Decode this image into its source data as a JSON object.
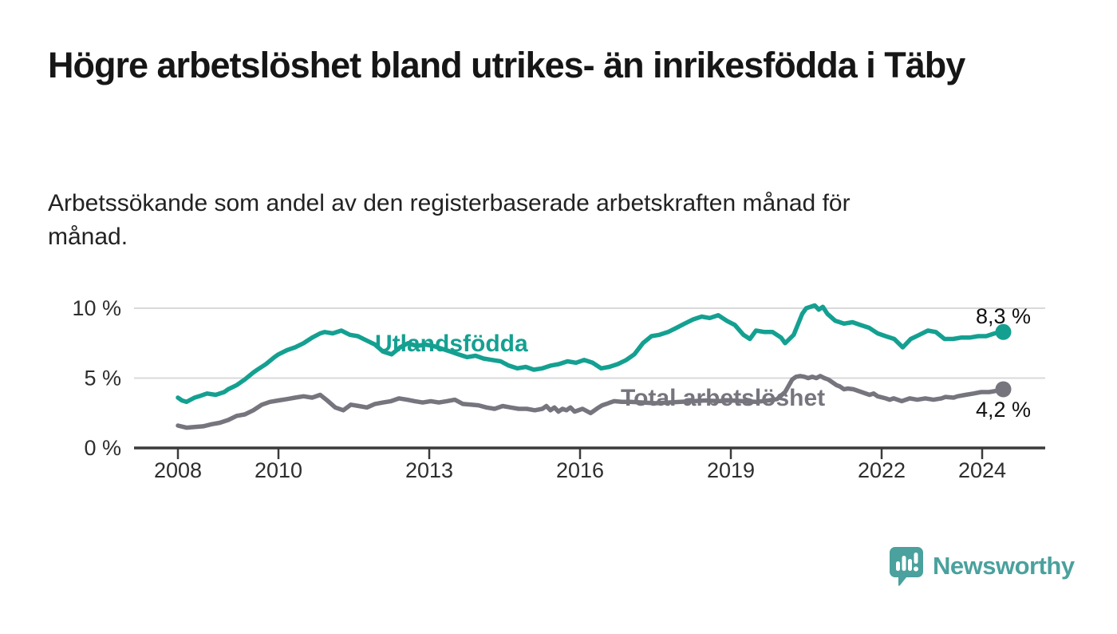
{
  "header": {
    "title": "Högre arbetslöshet bland utrikes- än inrikesfödda i Täby",
    "subtitle": "Arbetssökande som andel av den registerbaserade arbetskraften månad för månad."
  },
  "colors": {
    "series_foreign_born": "#14a091",
    "series_total": "#76757e",
    "gridline": "#d9d9d9",
    "axis": "#3b3b3b",
    "tick_text": "#2e2e2e",
    "logo_teal": "#4aa19d"
  },
  "chart_data": {
    "type": "line",
    "title": "Högre arbetslöshet bland utrikes- än inrikesfödda i Täby",
    "subtitle": "Arbetssökande som andel av den registerbaserade arbetskraften månad för månad.",
    "x_axis": {
      "ticks": [
        2008,
        2010,
        2013,
        2016,
        2019,
        2022,
        2024
      ],
      "range": [
        2007.1,
        2025.3
      ],
      "unit": "year"
    },
    "y_axis": {
      "ticks": [
        {
          "value": 0,
          "label": "0 %"
        },
        {
          "value": 5,
          "label": "5 %"
        },
        {
          "value": 10,
          "label": "10 %"
        }
      ],
      "range": [
        0,
        10.8
      ],
      "grid": true
    },
    "legend_position": "inline-labels",
    "series": [
      {
        "name": "Utlandsfödda",
        "color": "#14a091",
        "end_value": 8.3,
        "end_label": "8,3 %",
        "points": [
          [
            2008.0,
            3.6
          ],
          [
            2008.08,
            3.4
          ],
          [
            2008.17,
            3.3
          ],
          [
            2008.33,
            3.6
          ],
          [
            2008.42,
            3.7
          ],
          [
            2008.58,
            3.9
          ],
          [
            2008.75,
            3.8
          ],
          [
            2008.92,
            4.0
          ],
          [
            2009.0,
            4.2
          ],
          [
            2009.17,
            4.5
          ],
          [
            2009.33,
            4.9
          ],
          [
            2009.5,
            5.4
          ],
          [
            2009.58,
            5.6
          ],
          [
            2009.75,
            6.0
          ],
          [
            2009.92,
            6.5
          ],
          [
            2010.0,
            6.7
          ],
          [
            2010.17,
            7.0
          ],
          [
            2010.33,
            7.2
          ],
          [
            2010.5,
            7.5
          ],
          [
            2010.67,
            7.9
          ],
          [
            2010.83,
            8.2
          ],
          [
            2010.92,
            8.3
          ],
          [
            2011.08,
            8.2
          ],
          [
            2011.25,
            8.4
          ],
          [
            2011.42,
            8.1
          ],
          [
            2011.58,
            8.0
          ],
          [
            2011.75,
            7.7
          ],
          [
            2011.92,
            7.4
          ],
          [
            2012.08,
            6.9
          ],
          [
            2012.25,
            6.7
          ],
          [
            2012.42,
            7.2
          ],
          [
            2012.58,
            7.5
          ],
          [
            2012.75,
            7.3
          ],
          [
            2012.92,
            7.4
          ],
          [
            2013.08,
            7.3
          ],
          [
            2013.25,
            7.1
          ],
          [
            2013.42,
            6.9
          ],
          [
            2013.58,
            6.7
          ],
          [
            2013.75,
            6.5
          ],
          [
            2013.92,
            6.6
          ],
          [
            2014.08,
            6.4
          ],
          [
            2014.25,
            6.3
          ],
          [
            2014.42,
            6.2
          ],
          [
            2014.58,
            5.9
          ],
          [
            2014.75,
            5.7
          ],
          [
            2014.92,
            5.8
          ],
          [
            2015.08,
            5.6
          ],
          [
            2015.25,
            5.7
          ],
          [
            2015.42,
            5.9
          ],
          [
            2015.58,
            6.0
          ],
          [
            2015.75,
            6.2
          ],
          [
            2015.92,
            6.1
          ],
          [
            2016.08,
            6.3
          ],
          [
            2016.25,
            6.1
          ],
          [
            2016.42,
            5.7
          ],
          [
            2016.58,
            5.8
          ],
          [
            2016.75,
            6.0
          ],
          [
            2016.92,
            6.3
          ],
          [
            2017.08,
            6.7
          ],
          [
            2017.25,
            7.5
          ],
          [
            2017.42,
            8.0
          ],
          [
            2017.58,
            8.1
          ],
          [
            2017.75,
            8.3
          ],
          [
            2017.92,
            8.6
          ],
          [
            2018.08,
            8.9
          ],
          [
            2018.25,
            9.2
          ],
          [
            2018.42,
            9.4
          ],
          [
            2018.58,
            9.3
          ],
          [
            2018.75,
            9.5
          ],
          [
            2018.92,
            9.1
          ],
          [
            2019.08,
            8.8
          ],
          [
            2019.25,
            8.1
          ],
          [
            2019.38,
            7.8
          ],
          [
            2019.5,
            8.4
          ],
          [
            2019.67,
            8.3
          ],
          [
            2019.83,
            8.3
          ],
          [
            2020.0,
            7.9
          ],
          [
            2020.08,
            7.5
          ],
          [
            2020.25,
            8.1
          ],
          [
            2020.42,
            9.6
          ],
          [
            2020.5,
            10.0
          ],
          [
            2020.67,
            10.2
          ],
          [
            2020.75,
            9.9
          ],
          [
            2020.83,
            10.1
          ],
          [
            2020.92,
            9.6
          ],
          [
            2021.08,
            9.1
          ],
          [
            2021.25,
            8.9
          ],
          [
            2021.42,
            9.0
          ],
          [
            2021.58,
            8.8
          ],
          [
            2021.75,
            8.6
          ],
          [
            2021.92,
            8.2
          ],
          [
            2022.08,
            8.0
          ],
          [
            2022.25,
            7.8
          ],
          [
            2022.42,
            7.2
          ],
          [
            2022.58,
            7.8
          ],
          [
            2022.75,
            8.1
          ],
          [
            2022.92,
            8.4
          ],
          [
            2023.08,
            8.3
          ],
          [
            2023.25,
            7.8
          ],
          [
            2023.42,
            7.8
          ],
          [
            2023.58,
            7.9
          ],
          [
            2023.75,
            7.9
          ],
          [
            2023.92,
            8.0
          ],
          [
            2024.08,
            8.0
          ],
          [
            2024.25,
            8.2
          ],
          [
            2024.42,
            8.3
          ]
        ]
      },
      {
        "name": "Total arbetslöshet",
        "color": "#76757e",
        "end_value": 4.2,
        "end_label": "4,2 %",
        "points": [
          [
            2008.0,
            1.6
          ],
          [
            2008.17,
            1.45
          ],
          [
            2008.33,
            1.5
          ],
          [
            2008.5,
            1.55
          ],
          [
            2008.67,
            1.7
          ],
          [
            2008.83,
            1.8
          ],
          [
            2009.0,
            2.0
          ],
          [
            2009.17,
            2.3
          ],
          [
            2009.33,
            2.4
          ],
          [
            2009.5,
            2.7
          ],
          [
            2009.67,
            3.1
          ],
          [
            2009.83,
            3.3
          ],
          [
            2010.0,
            3.4
          ],
          [
            2010.17,
            3.5
          ],
          [
            2010.33,
            3.6
          ],
          [
            2010.5,
            3.7
          ],
          [
            2010.67,
            3.6
          ],
          [
            2010.83,
            3.8
          ],
          [
            2010.97,
            3.4
          ],
          [
            2011.13,
            2.9
          ],
          [
            2011.29,
            2.7
          ],
          [
            2011.44,
            3.1
          ],
          [
            2011.6,
            3.0
          ],
          [
            2011.76,
            2.9
          ],
          [
            2011.92,
            3.15
          ],
          [
            2012.08,
            3.25
          ],
          [
            2012.24,
            3.35
          ],
          [
            2012.4,
            3.55
          ],
          [
            2012.56,
            3.45
          ],
          [
            2012.71,
            3.35
          ],
          [
            2012.87,
            3.25
          ],
          [
            2013.03,
            3.35
          ],
          [
            2013.19,
            3.25
          ],
          [
            2013.35,
            3.35
          ],
          [
            2013.51,
            3.45
          ],
          [
            2013.67,
            3.15
          ],
          [
            2013.83,
            3.1
          ],
          [
            2013.98,
            3.05
          ],
          [
            2014.14,
            2.9
          ],
          [
            2014.3,
            2.8
          ],
          [
            2014.46,
            3.0
          ],
          [
            2014.62,
            2.9
          ],
          [
            2014.78,
            2.8
          ],
          [
            2014.94,
            2.8
          ],
          [
            2015.1,
            2.7
          ],
          [
            2015.25,
            2.8
          ],
          [
            2015.33,
            3.0
          ],
          [
            2015.41,
            2.7
          ],
          [
            2015.49,
            2.9
          ],
          [
            2015.57,
            2.6
          ],
          [
            2015.65,
            2.8
          ],
          [
            2015.73,
            2.7
          ],
          [
            2015.81,
            2.9
          ],
          [
            2015.89,
            2.6
          ],
          [
            2016.05,
            2.8
          ],
          [
            2016.21,
            2.5
          ],
          [
            2016.29,
            2.7
          ],
          [
            2016.37,
            2.9
          ],
          [
            2016.44,
            3.05
          ],
          [
            2016.52,
            3.15
          ],
          [
            2016.6,
            3.25
          ],
          [
            2016.68,
            3.35
          ],
          [
            2016.83,
            3.3
          ],
          [
            2017.0,
            3.3
          ],
          [
            2017.25,
            3.25
          ],
          [
            2017.5,
            3.2
          ],
          [
            2017.75,
            3.25
          ],
          [
            2018.0,
            3.3
          ],
          [
            2018.25,
            3.35
          ],
          [
            2018.5,
            3.4
          ],
          [
            2018.75,
            3.35
          ],
          [
            2019.0,
            3.4
          ],
          [
            2019.25,
            3.35
          ],
          [
            2019.5,
            3.3
          ],
          [
            2019.75,
            3.4
          ],
          [
            2019.92,
            3.5
          ],
          [
            2020.08,
            4.0
          ],
          [
            2020.22,
            4.9
          ],
          [
            2020.3,
            5.1
          ],
          [
            2020.38,
            5.15
          ],
          [
            2020.46,
            5.1
          ],
          [
            2020.54,
            5.0
          ],
          [
            2020.62,
            5.1
          ],
          [
            2020.7,
            5.0
          ],
          [
            2020.78,
            5.15
          ],
          [
            2020.86,
            5.0
          ],
          [
            2020.94,
            4.9
          ],
          [
            2021.02,
            4.7
          ],
          [
            2021.1,
            4.5
          ],
          [
            2021.17,
            4.4
          ],
          [
            2021.25,
            4.2
          ],
          [
            2021.33,
            4.25
          ],
          [
            2021.44,
            4.2
          ],
          [
            2021.6,
            4.0
          ],
          [
            2021.76,
            3.8
          ],
          [
            2021.84,
            3.9
          ],
          [
            2021.92,
            3.7
          ],
          [
            2022.08,
            3.55
          ],
          [
            2022.16,
            3.45
          ],
          [
            2022.24,
            3.55
          ],
          [
            2022.4,
            3.35
          ],
          [
            2022.56,
            3.55
          ],
          [
            2022.71,
            3.45
          ],
          [
            2022.87,
            3.55
          ],
          [
            2023.03,
            3.45
          ],
          [
            2023.19,
            3.55
          ],
          [
            2023.27,
            3.65
          ],
          [
            2023.43,
            3.6
          ],
          [
            2023.51,
            3.7
          ],
          [
            2023.67,
            3.8
          ],
          [
            2023.83,
            3.9
          ],
          [
            2023.98,
            4.0
          ],
          [
            2024.14,
            4.0
          ],
          [
            2024.3,
            4.1
          ],
          [
            2024.42,
            4.2
          ]
        ]
      }
    ]
  },
  "footer": {
    "logo_text": "Newsworthy"
  }
}
